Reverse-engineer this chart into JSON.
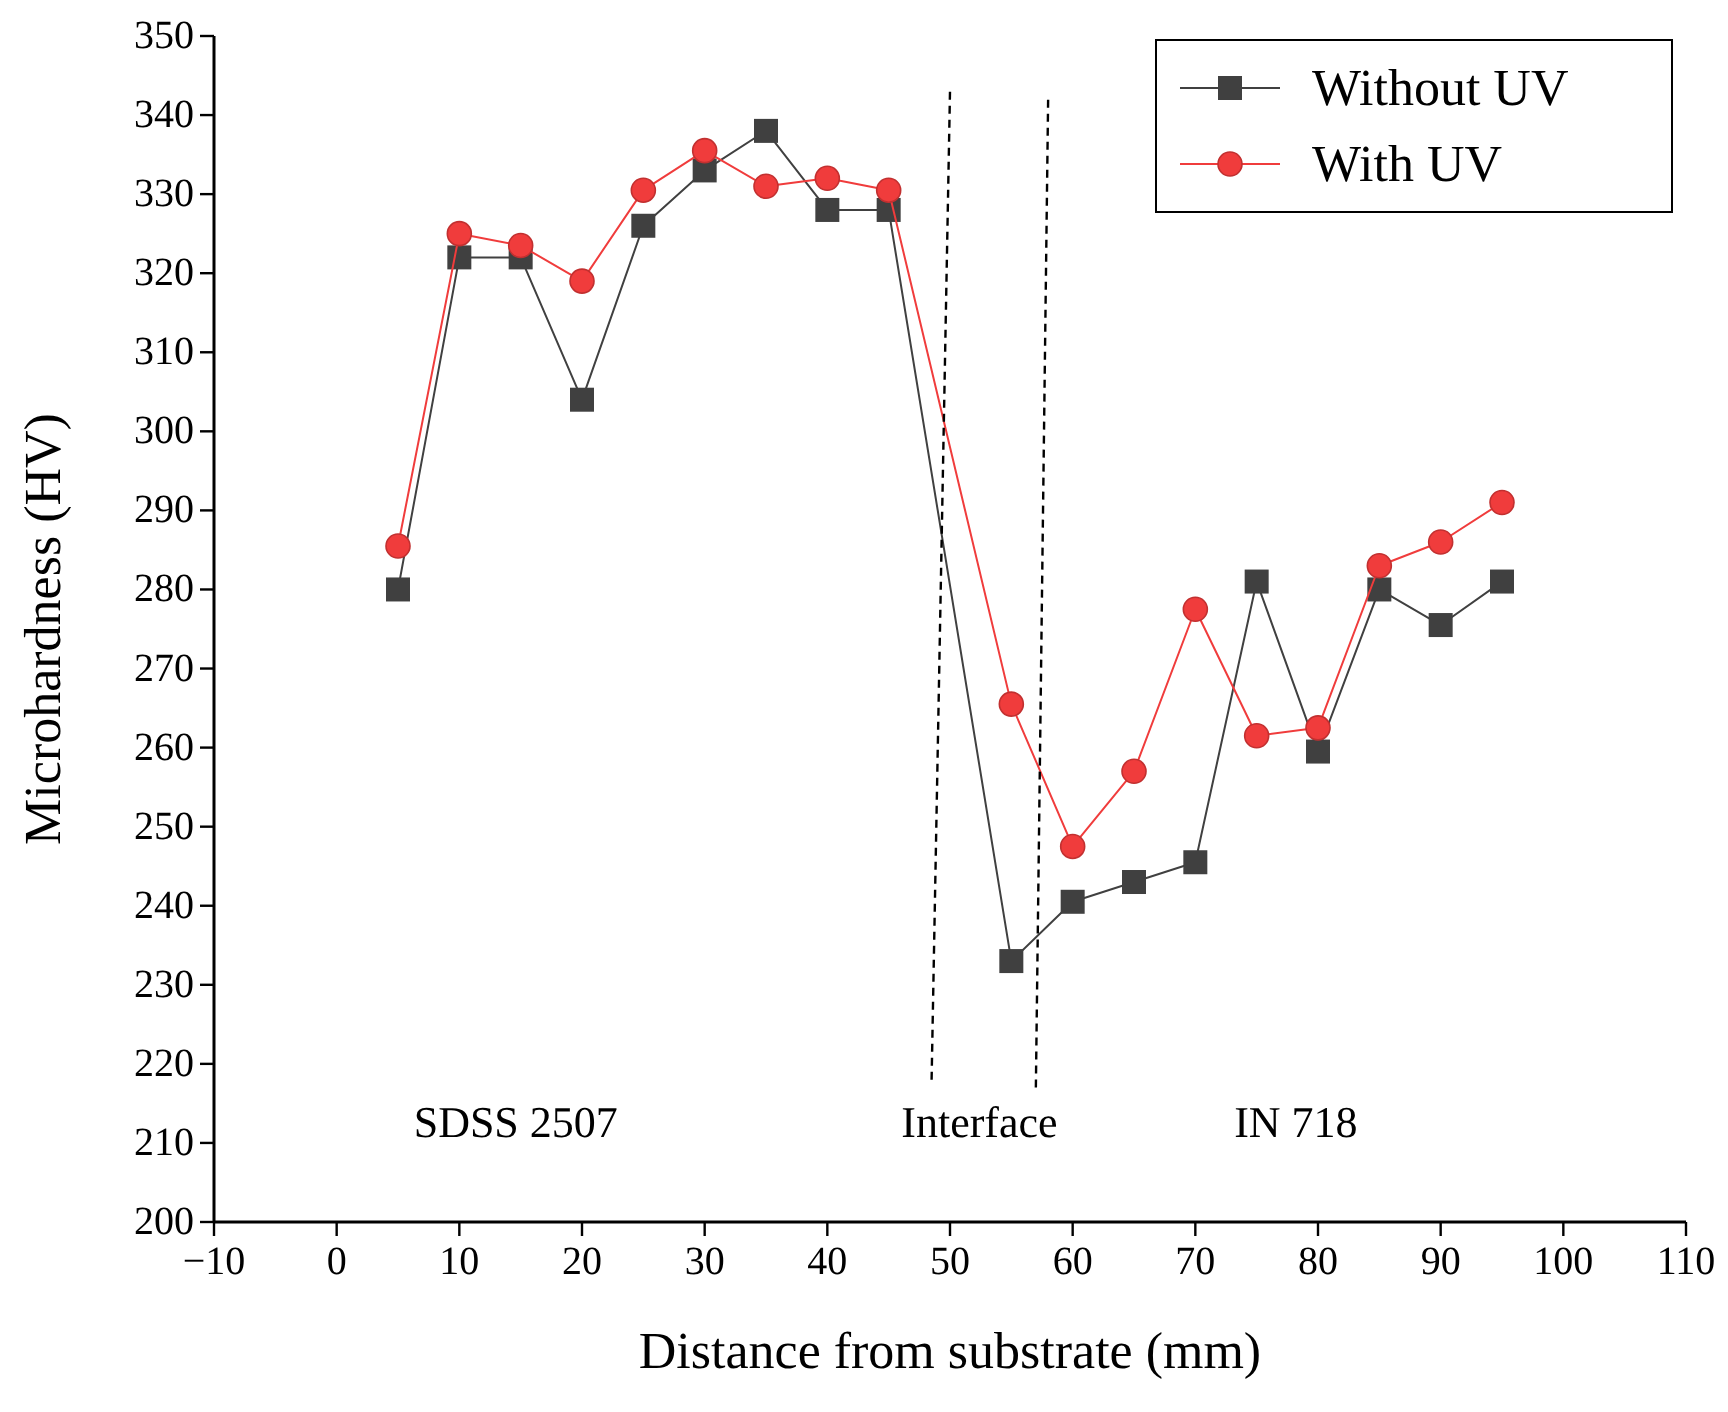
{
  "chart_data": {
    "type": "line",
    "xlabel": "Distance from substrate (mm)",
    "ylabel": "Microhardness (HV)",
    "xlim": [
      -10,
      110
    ],
    "xticks": [
      {
        "value": -10,
        "label": "−10"
      },
      0,
      10,
      20,
      30,
      40,
      50,
      60,
      70,
      80,
      90,
      100,
      110
    ],
    "ylim": [
      200,
      350
    ],
    "yticks": [
      200,
      210,
      220,
      230,
      240,
      250,
      260,
      270,
      280,
      290,
      300,
      310,
      320,
      330,
      340,
      350
    ],
    "grid": false,
    "legend": "top right",
    "line_style": "solid",
    "series": [
      {
        "name": "Without UV",
        "color": "#404040",
        "marker": "square",
        "x": [
          5,
          10,
          15,
          20,
          25,
          30,
          35,
          40,
          45,
          55,
          60,
          65,
          70,
          75,
          80,
          85,
          90,
          95
        ],
        "values": [
          280,
          322,
          322,
          304,
          326,
          333,
          338,
          328,
          328,
          233,
          240.5,
          243,
          245.5,
          281,
          259.5,
          280,
          275.5,
          281
        ]
      },
      {
        "name": "With UV",
        "color": "#f03c3c",
        "marker": "circle",
        "x": [
          5,
          10,
          15,
          20,
          25,
          30,
          35,
          40,
          45,
          55,
          60,
          65,
          70,
          75,
          80,
          85,
          90,
          95
        ],
        "values": [
          285.5,
          325,
          323.5,
          319,
          330.5,
          335.5,
          331,
          332,
          330.5,
          265.5,
          247.5,
          257,
          277.5,
          261.5,
          262.5,
          283,
          286,
          291
        ]
      },
      {
        "color": "#000000",
        "marker": "none",
        "line_style": "dashed",
        "x": [
          48.5,
          50
        ],
        "values": [
          218,
          343
        ]
      },
      {
        "color": "#000000",
        "marker": "none",
        "line_style": "dashed",
        "x": [
          57,
          58
        ],
        "values": [
          217,
          342
        ]
      }
    ],
    "annotations": [
      "SDSS 2507",
      "Interface",
      "IN 718"
    ]
  }
}
